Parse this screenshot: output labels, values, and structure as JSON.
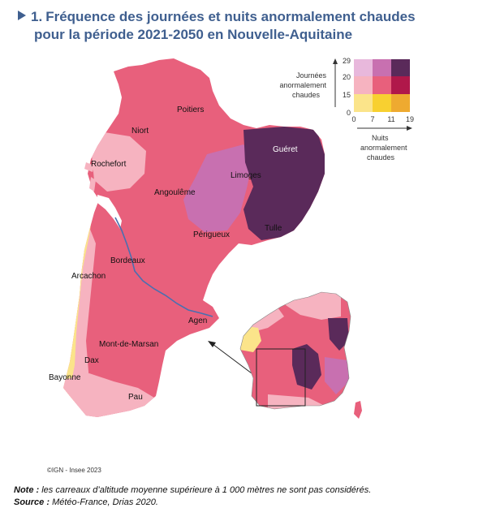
{
  "title": {
    "number": "1.",
    "line1": "Fréquence des journées et nuits anormalement chaudes",
    "line2": "pour la période 2021-2050 en Nouvelle-Aquitaine"
  },
  "legend": {
    "y_title": [
      "Journées",
      "anormalement",
      "chaudes"
    ],
    "x_title": [
      "Nuits",
      "anormalement",
      "chaudes"
    ],
    "y_ticks": [
      "29",
      "20",
      "15",
      "0"
    ],
    "x_ticks": [
      "0",
      "7",
      "11",
      "19"
    ],
    "colors": [
      [
        "#e8b8dc",
        "#c870b0",
        "#5a2a5a"
      ],
      [
        "#f6b3c0",
        "#e8607c",
        "#b0184a"
      ],
      [
        "#fbe48a",
        "#f8d030",
        "#eeaa30"
      ]
    ]
  },
  "map": {
    "base_color": "#e8607c",
    "cities": [
      {
        "name": "Poitiers"
      },
      {
        "name": "Niort"
      },
      {
        "name": "Guéret"
      },
      {
        "name": "Rochefort"
      },
      {
        "name": "Limoges"
      },
      {
        "name": "Angoulême"
      },
      {
        "name": "Tulle"
      },
      {
        "name": "Périgueux"
      },
      {
        "name": "Bordeaux"
      },
      {
        "name": "Arcachon"
      },
      {
        "name": "Agen"
      },
      {
        "name": "Mont-de-Marsan"
      },
      {
        "name": "Dax"
      },
      {
        "name": "Bayonne"
      },
      {
        "name": "Pau"
      }
    ]
  },
  "copyright": "©IGN - Insee 2023",
  "note": {
    "label": "Note :",
    "text": "les carreaux d’altitude moyenne supérieure à 1 000 mètres ne sont pas considérés."
  },
  "source": {
    "label": "Source :",
    "text": "Météo-France, Drias 2020."
  }
}
